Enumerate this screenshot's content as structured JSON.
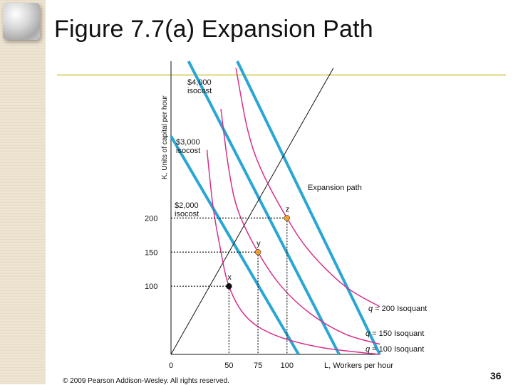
{
  "page": {
    "title": "Figure 7.7(a) Expansion Path",
    "footer": "© 2009 Pearson Addison-Wesley. All rights reserved.",
    "page_number": "36"
  },
  "colors": {
    "isocost": "#2aa6d4",
    "isoquant": "#d6308a",
    "point_fill": "#f0a030",
    "axis": "#111111"
  },
  "chart_data": {
    "type": "line",
    "xlabel": "L, Workers per hour",
    "ylabel": "K, Units of capital per hour",
    "xlim": [
      0,
      180
    ],
    "ylim": [
      0,
      430
    ],
    "x_ticks": [
      {
        "value": 0,
        "label": "0"
      },
      {
        "value": 50,
        "label": "50"
      },
      {
        "value": 75,
        "label": "75"
      },
      {
        "value": 100,
        "label": "100"
      }
    ],
    "y_ticks": [
      {
        "value": 100,
        "label": "100"
      },
      {
        "value": 150,
        "label": "150"
      },
      {
        "value": 200,
        "label": "200"
      }
    ],
    "isocosts": [
      {
        "label": "$2,000 isocost",
        "x_intercept": 110,
        "y_intercept": 320
      },
      {
        "label": "$3,000 isocost",
        "x_intercept": 145,
        "y_intercept": 480
      },
      {
        "label": "$4,000 isocost",
        "x_intercept": 180,
        "y_intercept": 630
      }
    ],
    "isoquants": [
      {
        "label": "q = 100 Isoquant",
        "points": [
          [
            31,
            300
          ],
          [
            36,
            220
          ],
          [
            42,
            160
          ],
          [
            50,
            100
          ],
          [
            65,
            55
          ],
          [
            90,
            28
          ],
          [
            130,
            10
          ],
          [
            180,
            0
          ]
        ]
      },
      {
        "label": "q = 150 Isoquant",
        "points": [
          [
            43,
            360
          ],
          [
            50,
            270
          ],
          [
            58,
            210
          ],
          [
            75,
            150
          ],
          [
            95,
            100
          ],
          [
            120,
            60
          ],
          [
            150,
            30
          ],
          [
            180,
            15
          ]
        ]
      },
      {
        "label": "q = 200 Isoquant",
        "points": [
          [
            56,
            420
          ],
          [
            66,
            330
          ],
          [
            78,
            270
          ],
          [
            100,
            200
          ],
          [
            120,
            150
          ],
          [
            150,
            100
          ],
          [
            180,
            70
          ]
        ]
      }
    ],
    "expansion_path": {
      "label": "Expansion path",
      "points": [
        [
          0,
          0
        ],
        [
          140,
          420
        ]
      ]
    },
    "points": [
      {
        "label": "x",
        "x": 50,
        "y": 100
      },
      {
        "label": "y",
        "x": 75,
        "y": 150
      },
      {
        "label": "z",
        "x": 100,
        "y": 200
      }
    ]
  }
}
